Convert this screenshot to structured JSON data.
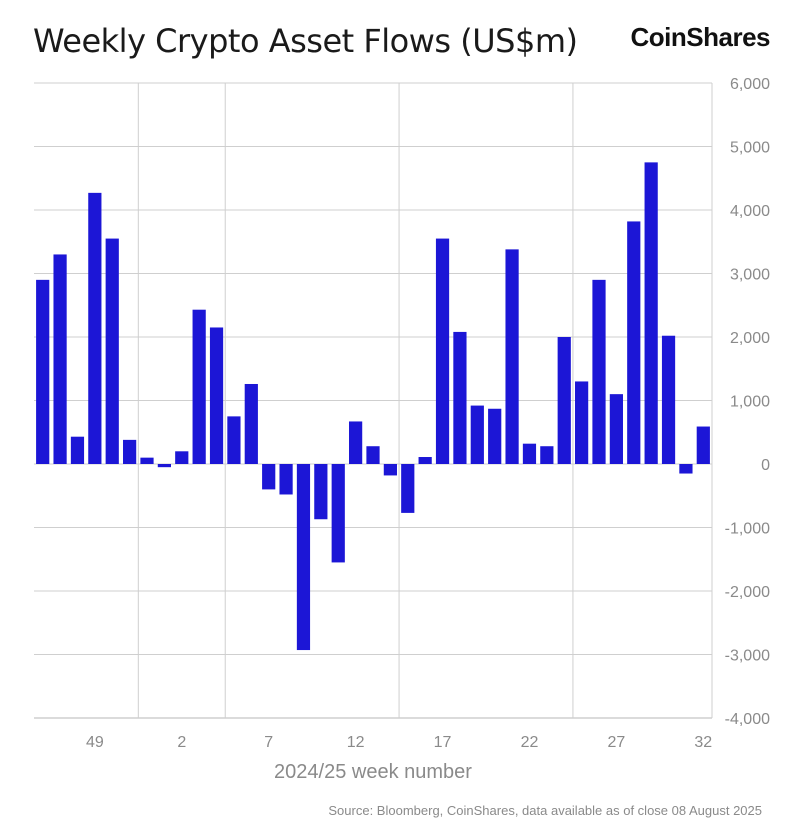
{
  "header": {
    "title": "Weekly Crypto Asset Flows (US$m)",
    "brand": "CoinShares"
  },
  "footer": {
    "source": "Source: Bloomberg, CoinShares, data available as of close 08 August 2025"
  },
  "colors": {
    "bar": "#1c16d6",
    "grid": "#cfcfcf",
    "axis": "#8a8a8a"
  },
  "chart_data": {
    "type": "bar",
    "title": "Weekly Crypto Asset Flows (US$m)",
    "xlabel": "2024/25 week number",
    "ylabel": "",
    "ylim": [
      -4000,
      6000
    ],
    "y_ticks": [
      6000,
      5000,
      4000,
      3000,
      2000,
      1000,
      0,
      -1000,
      -2000,
      -3000,
      -4000
    ],
    "y_tick_labels": [
      "6,000",
      "5,000",
      "4,000",
      "3,000",
      "2,000",
      "1,000",
      "0",
      "-1,000",
      "-2,000",
      "-3,000",
      "-4,000"
    ],
    "x_tick_labels": [
      "49",
      "2",
      "7",
      "12",
      "17",
      "22",
      "27",
      "32"
    ],
    "x_tick_positions": [
      49,
      2,
      7,
      12,
      17,
      22,
      27,
      32
    ],
    "vertical_gridlines_after_label_index": [
      0,
      1,
      3,
      5
    ],
    "grid": true,
    "y_axis_side": "right",
    "categories": [
      "46",
      "47",
      "48",
      "49",
      "50",
      "51",
      "52",
      "1",
      "2",
      "3",
      "4",
      "5",
      "6",
      "7",
      "8",
      "9",
      "10",
      "11",
      "12",
      "13",
      "14",
      "15",
      "16",
      "17",
      "18",
      "19",
      "20",
      "21",
      "22",
      "23",
      "24",
      "25",
      "26",
      "27",
      "28",
      "29",
      "30",
      "31",
      "32"
    ],
    "values": [
      2900,
      3300,
      430,
      4270,
      3550,
      380,
      100,
      -50,
      200,
      2430,
      2150,
      750,
      1260,
      -400,
      -480,
      -2930,
      -870,
      -1550,
      670,
      280,
      -180,
      -770,
      110,
      3550,
      2080,
      920,
      870,
      3380,
      320,
      280,
      2000,
      1300,
      2900,
      1100,
      3820,
      4750,
      2020,
      -150,
      590
    ]
  }
}
